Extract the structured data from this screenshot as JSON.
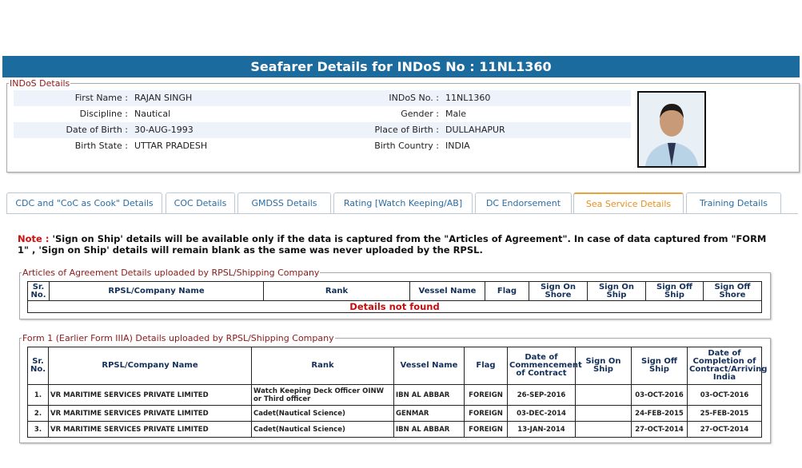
{
  "header": {
    "title": "Seafarer Details for INDoS No : 11NL1360"
  },
  "indos_details": {
    "legend": "INDoS Details",
    "rows": [
      [
        {
          "label": "First Name :",
          "value": "RAJAN SINGH"
        },
        {
          "label": "INDoS No. :",
          "value": "11NL1360"
        }
      ],
      [
        {
          "label": "Discipline :",
          "value": "Nautical"
        },
        {
          "label": "Gender :",
          "value": "Male"
        }
      ],
      [
        {
          "label": "Date of Birth :",
          "value": "30-AUG-1993"
        },
        {
          "label": "Place of Birth :",
          "value": "DULLAHAPUR"
        }
      ],
      [
        {
          "label": "Birth State :",
          "value": "UTTAR PRADESH"
        },
        {
          "label": "Birth Country :",
          "value": "INDIA"
        }
      ]
    ]
  },
  "tabs": [
    {
      "label": "CDC and \"CoC as Cook\" Details",
      "active": false
    },
    {
      "label": "COC Details",
      "active": false
    },
    {
      "label": "GMDSS Details",
      "active": false
    },
    {
      "label": "Rating [Watch Keeping/AB]",
      "active": false
    },
    {
      "label": "DC Endorsement",
      "active": false
    },
    {
      "label": "Sea Service Details",
      "active": true
    },
    {
      "label": "Training Details",
      "active": false
    }
  ],
  "note": {
    "label": "Note :",
    "text": "'Sign on Ship' details will be available only if the data is captured from the \"Articles of Agreement\". In case of data captured from \"FORM 1\" , 'Sign on Ship' details will remain blank as the same was never uploaded by the RPSL."
  },
  "articles": {
    "legend": "Articles of Agreement Details uploaded by RPSL/Shipping Company",
    "columns": [
      "Sr. No.",
      "RPSL/Company Name",
      "Rank",
      "Vessel Name",
      "Flag",
      "Sign On Shore",
      "Sign On Ship",
      "Sign Off Ship",
      "Sign Off Shore"
    ],
    "empty_message": "Details not found"
  },
  "form1": {
    "legend": "Form 1 (Earlier Form IIIA) Details uploaded by RPSL/Shipping Company",
    "columns": [
      "Sr. No.",
      "RPSL/Company Name",
      "Rank",
      "Vessel Name",
      "Flag",
      "Date of Commencement of Contract",
      "Sign On Ship",
      "Sign Off Ship",
      "Date of Completion of Contract/Arriving India"
    ],
    "rows": [
      [
        "1.",
        "VR MARITIME SERVICES PRIVATE LIMITED",
        "Watch Keeping Deck Officer OINW or Third officer",
        "IBN AL ABBAR",
        "FOREIGN",
        "26-SEP-2016",
        null,
        "03-OCT-2016",
        "03-OCT-2016"
      ],
      [
        "2.",
        "VR MARITIME SERVICES PRIVATE LIMITED",
        "Cadet(Nautical Science)",
        "GENMAR",
        "FOREIGN",
        "03-DEC-2014",
        null,
        "24-FEB-2015",
        "25-FEB-2015"
      ],
      [
        "3.",
        "VR MARITIME SERVICES PRIVATE LIMITED",
        "Cadet(Nautical Science)",
        "IBN AL ABBAR",
        "FOREIGN",
        "13-JAN-2014",
        null,
        "27-OCT-2014",
        "27-OCT-2014"
      ]
    ]
  }
}
